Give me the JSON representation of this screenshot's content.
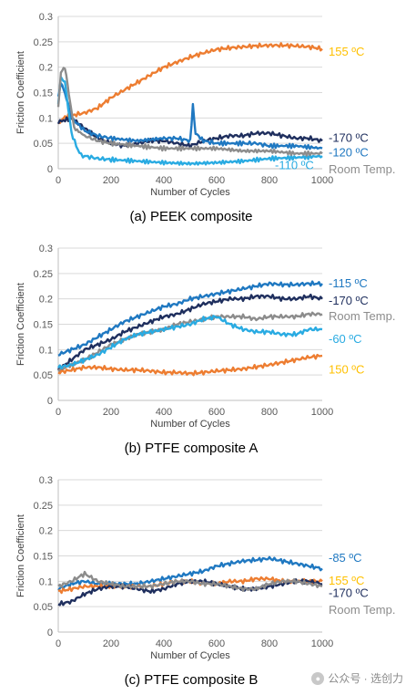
{
  "chart_data": [
    {
      "type": "line",
      "title": "(a) PEEK composite",
      "xlabel": "Number of Cycles",
      "ylabel": "Friction Coefficient",
      "xlim": [
        0,
        1000
      ],
      "ylim": [
        0,
        0.3
      ],
      "xticks": [
        0,
        200,
        400,
        600,
        800,
        1000
      ],
      "yticks": [
        0,
        0.05,
        0.1,
        0.15,
        0.2,
        0.25,
        0.3
      ],
      "grid": true,
      "series": [
        {
          "name": "155 ºC",
          "color": "#ED7D31",
          "label_color": "#FFC000",
          "x": [
            0,
            20,
            50,
            100,
            150,
            200,
            250,
            300,
            350,
            400,
            450,
            500,
            550,
            600,
            650,
            700,
            750,
            800,
            850,
            900,
            950,
            1000
          ],
          "y": [
            0.09,
            0.1,
            0.105,
            0.11,
            0.12,
            0.14,
            0.155,
            0.17,
            0.185,
            0.2,
            0.21,
            0.22,
            0.228,
            0.235,
            0.238,
            0.24,
            0.242,
            0.243,
            0.243,
            0.242,
            0.24,
            0.236
          ]
        },
        {
          "name": "-170 ºC",
          "color": "#1F2F5E",
          "label_color": "#1F2F5E",
          "x": [
            0,
            20,
            50,
            100,
            150,
            200,
            250,
            300,
            350,
            400,
            450,
            500,
            550,
            600,
            650,
            700,
            750,
            800,
            850,
            900,
            950,
            1000
          ],
          "y": [
            0.09,
            0.095,
            0.1,
            0.08,
            0.06,
            0.05,
            0.045,
            0.05,
            0.055,
            0.055,
            0.05,
            0.045,
            0.055,
            0.06,
            0.065,
            0.065,
            0.07,
            0.07,
            0.065,
            0.06,
            0.06,
            0.055
          ]
        },
        {
          "name": "-120 ºC",
          "color": "#1F78C1",
          "label_color": "#1F78C1",
          "x": [
            0,
            10,
            25,
            50,
            100,
            150,
            200,
            300,
            400,
            450,
            500,
            510,
            520,
            550,
            600,
            700,
            750,
            800,
            900,
            1000
          ],
          "y": [
            0.14,
            0.17,
            0.15,
            0.1,
            0.075,
            0.065,
            0.06,
            0.055,
            0.06,
            0.06,
            0.055,
            0.125,
            0.07,
            0.055,
            0.05,
            0.05,
            0.05,
            0.045,
            0.045,
            0.04
          ]
        },
        {
          "name": "-110 ºC",
          "color": "#29ABE2",
          "label_color": "#29ABE2",
          "x": [
            0,
            10,
            25,
            50,
            80,
            100,
            150,
            200,
            300,
            400,
            500,
            600,
            700,
            800,
            900,
            1000
          ],
          "y": [
            0.13,
            0.18,
            0.17,
            0.07,
            0.03,
            0.025,
            0.02,
            0.018,
            0.015,
            0.012,
            0.01,
            0.012,
            0.015,
            0.02,
            0.022,
            0.025
          ]
        },
        {
          "name": "Room Temp.",
          "color": "#8C8C8C",
          "label_color": "#8C8C8C",
          "x": [
            0,
            10,
            25,
            40,
            60,
            100,
            150,
            200,
            300,
            400,
            500,
            600,
            700,
            800,
            900,
            1000
          ],
          "y": [
            0.12,
            0.19,
            0.2,
            0.15,
            0.08,
            0.065,
            0.055,
            0.05,
            0.045,
            0.04,
            0.04,
            0.04,
            0.035,
            0.035,
            0.03,
            0.03
          ]
        }
      ]
    },
    {
      "type": "line",
      "title": "(b) PTFE composite A",
      "xlabel": "Number of Cycles",
      "ylabel": "Friction Coefficient",
      "xlim": [
        0,
        1000
      ],
      "ylim": [
        0,
        0.3
      ],
      "xticks": [
        0,
        200,
        400,
        600,
        800,
        1000
      ],
      "yticks": [
        0,
        0.05,
        0.1,
        0.15,
        0.2,
        0.25,
        0.3
      ],
      "grid": true,
      "series": [
        {
          "name": "-115 ºC",
          "color": "#1F78C1",
          "label_color": "#1F78C1",
          "x": [
            0,
            50,
            100,
            150,
            200,
            250,
            300,
            350,
            400,
            450,
            500,
            550,
            600,
            650,
            700,
            750,
            800,
            850,
            900,
            950,
            1000
          ],
          "y": [
            0.09,
            0.1,
            0.11,
            0.125,
            0.14,
            0.155,
            0.165,
            0.175,
            0.185,
            0.19,
            0.2,
            0.205,
            0.21,
            0.215,
            0.22,
            0.225,
            0.23,
            0.228,
            0.228,
            0.23,
            0.23
          ]
        },
        {
          "name": "-170 ºC",
          "color": "#1F2F5E",
          "label_color": "#1F2F5E",
          "x": [
            0,
            50,
            100,
            150,
            200,
            250,
            300,
            350,
            400,
            450,
            500,
            550,
            600,
            650,
            700,
            750,
            800,
            850,
            900,
            950,
            1000
          ],
          "y": [
            0.06,
            0.08,
            0.1,
            0.11,
            0.12,
            0.135,
            0.145,
            0.155,
            0.165,
            0.17,
            0.18,
            0.19,
            0.195,
            0.2,
            0.2,
            0.205,
            0.205,
            0.2,
            0.2,
            0.205,
            0.2
          ]
        },
        {
          "name": "Room Temp.",
          "color": "#8C8C8C",
          "label_color": "#8C8C8C",
          "x": [
            0,
            50,
            100,
            150,
            200,
            250,
            300,
            350,
            400,
            450,
            500,
            550,
            600,
            650,
            700,
            750,
            800,
            850,
            900,
            950,
            1000
          ],
          "y": [
            0.06,
            0.07,
            0.08,
            0.095,
            0.11,
            0.12,
            0.13,
            0.135,
            0.14,
            0.15,
            0.155,
            0.16,
            0.165,
            0.165,
            0.165,
            0.16,
            0.165,
            0.165,
            0.165,
            0.17,
            0.17
          ]
        },
        {
          "name": "-60 ºC",
          "color": "#29ABE2",
          "label_color": "#29ABE2",
          "x": [
            0,
            50,
            100,
            150,
            200,
            250,
            300,
            350,
            400,
            450,
            500,
            550,
            600,
            650,
            700,
            750,
            800,
            850,
            900,
            950,
            1000
          ],
          "y": [
            0.065,
            0.07,
            0.08,
            0.09,
            0.105,
            0.12,
            0.13,
            0.135,
            0.14,
            0.145,
            0.15,
            0.16,
            0.165,
            0.15,
            0.14,
            0.135,
            0.135,
            0.13,
            0.13,
            0.14,
            0.14
          ]
        },
        {
          "name": "150 ºC",
          "color": "#ED7D31",
          "label_color": "#FFC000",
          "x": [
            0,
            50,
            100,
            150,
            200,
            250,
            300,
            350,
            400,
            450,
            500,
            550,
            600,
            650,
            700,
            750,
            800,
            850,
            900,
            950,
            1000
          ],
          "y": [
            0.055,
            0.06,
            0.065,
            0.065,
            0.062,
            0.06,
            0.06,
            0.058,
            0.055,
            0.055,
            0.053,
            0.055,
            0.058,
            0.06,
            0.062,
            0.066,
            0.07,
            0.075,
            0.08,
            0.085,
            0.088
          ]
        }
      ]
    },
    {
      "type": "line",
      "title": "(c) PTFE composite B",
      "xlabel": "Number of Cycles",
      "ylabel": "Friction Coefficient",
      "xlim": [
        0,
        1000
      ],
      "ylim": [
        0,
        0.3
      ],
      "xticks": [
        0,
        200,
        400,
        600,
        800,
        1000
      ],
      "yticks": [
        0,
        0.05,
        0.1,
        0.15,
        0.2,
        0.25,
        0.3
      ],
      "grid": true,
      "series": [
        {
          "name": "-85 ºC",
          "color": "#1F78C1",
          "label_color": "#1F78C1",
          "x": [
            0,
            50,
            100,
            150,
            200,
            250,
            300,
            350,
            400,
            450,
            500,
            550,
            600,
            650,
            700,
            750,
            800,
            850,
            900,
            950,
            1000
          ],
          "y": [
            0.085,
            0.095,
            0.1,
            0.095,
            0.095,
            0.095,
            0.095,
            0.1,
            0.105,
            0.11,
            0.115,
            0.12,
            0.13,
            0.135,
            0.14,
            0.142,
            0.145,
            0.14,
            0.135,
            0.13,
            0.125
          ]
        },
        {
          "name": "155 ºC",
          "color": "#ED7D31",
          "label_color": "#FFC000",
          "x": [
            0,
            50,
            100,
            150,
            200,
            250,
            300,
            350,
            400,
            450,
            500,
            550,
            600,
            650,
            700,
            750,
            800,
            850,
            900,
            950,
            1000
          ],
          "y": [
            0.08,
            0.085,
            0.09,
            0.09,
            0.09,
            0.09,
            0.09,
            0.09,
            0.095,
            0.1,
            0.1,
            0.095,
            0.095,
            0.1,
            0.1,
            0.105,
            0.105,
            0.1,
            0.1,
            0.1,
            0.1
          ]
        },
        {
          "name": "-170 ºC",
          "color": "#1F2F5E",
          "label_color": "#1F2F5E",
          "x": [
            0,
            50,
            100,
            150,
            200,
            250,
            300,
            350,
            400,
            450,
            500,
            550,
            600,
            650,
            700,
            750,
            800,
            850,
            900,
            950,
            1000
          ],
          "y": [
            0.055,
            0.06,
            0.075,
            0.085,
            0.09,
            0.09,
            0.085,
            0.08,
            0.085,
            0.095,
            0.1,
            0.1,
            0.095,
            0.09,
            0.085,
            0.085,
            0.09,
            0.095,
            0.1,
            0.1,
            0.095
          ]
        },
        {
          "name": "Room Temp.",
          "color": "#8C8C8C",
          "label_color": "#8C8C8C",
          "x": [
            0,
            50,
            100,
            150,
            200,
            250,
            300,
            350,
            400,
            450,
            500,
            550,
            600,
            650,
            700,
            750,
            800,
            850,
            900,
            950,
            1000
          ],
          "y": [
            0.09,
            0.1,
            0.115,
            0.1,
            0.095,
            0.09,
            0.09,
            0.09,
            0.095,
            0.1,
            0.1,
            0.095,
            0.095,
            0.09,
            0.085,
            0.085,
            0.095,
            0.1,
            0.1,
            0.095,
            0.09
          ]
        }
      ]
    }
  ],
  "watermark": {
    "text": "公众号 · 选创力",
    "icon": "wechat-icon"
  }
}
